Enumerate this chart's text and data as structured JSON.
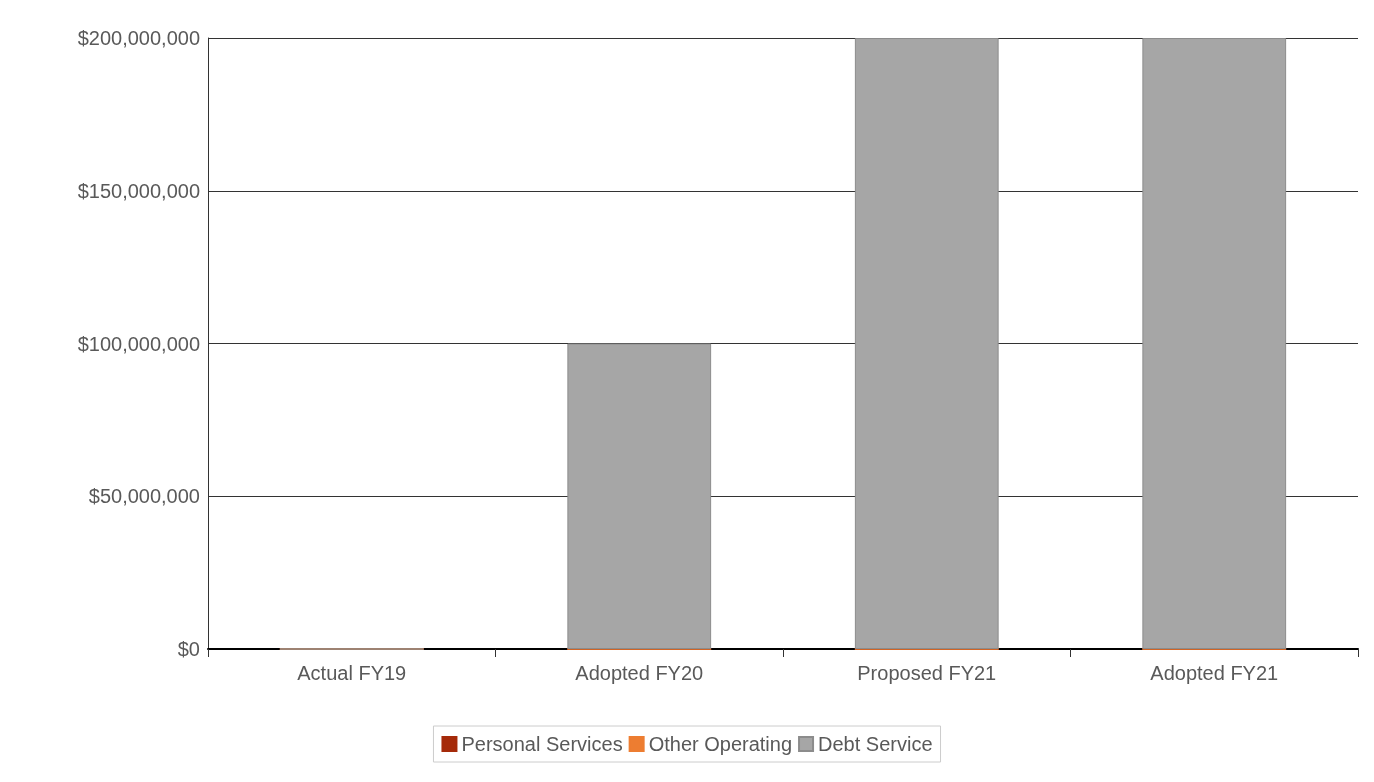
{
  "chart_data": {
    "type": "bar",
    "stacked": true,
    "categories": [
      "Actual FY19",
      "Adopted FY20",
      "Proposed FY21",
      "Adopted FY21"
    ],
    "series": [
      {
        "name": "Personal Services",
        "color": "#a52a0a",
        "values": [
          0,
          0,
          0,
          0
        ]
      },
      {
        "name": "Other Operating",
        "color": "#ed7d31",
        "values": [
          0,
          0,
          0,
          0
        ]
      },
      {
        "name": "Debt Service",
        "color": "#a6a6a6",
        "values": [
          0,
          100000000,
          200000000,
          200000000
        ]
      }
    ],
    "ylim": [
      0,
      200000000
    ],
    "yticks": [
      {
        "value": 0,
        "label": "$0"
      },
      {
        "value": 50000000,
        "label": "$50,000,000"
      },
      {
        "value": 100000000,
        "label": "$100,000,000"
      },
      {
        "value": 150000000,
        "label": "$150,000,000"
      },
      {
        "value": 200000000,
        "label": "$200,000,000"
      }
    ],
    "grid": "y",
    "legend": "bottom"
  }
}
